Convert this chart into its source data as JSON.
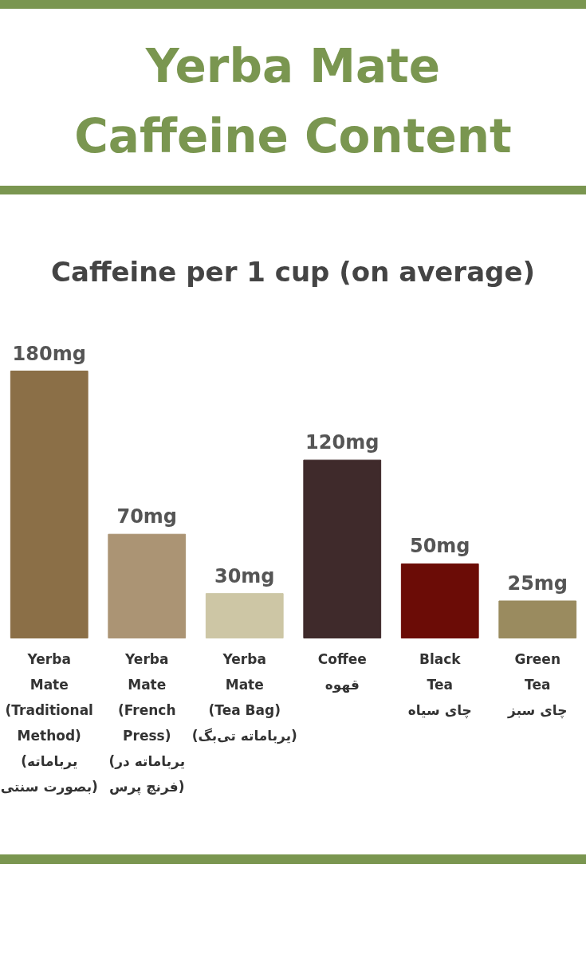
{
  "chart_data": {
    "type": "bar",
    "title": "Yerba Mate\nCaffeine Content",
    "subtitle": "Caffeine per 1 cup (on average)",
    "categories": [
      "Yerba\nMate\n(Traditional\nMethod)\n(یرباماته\nبصورت سنتی)",
      "Yerba\nMate\n(French\nPress)\n(یرباماته در\nفرنچ پرس)",
      "Yerba\nMate\n(Tea Bag)\n(یرباماته تی‌بگ)",
      "Coffee\nقهوه",
      "Black\nTea\nچای سیاه",
      "Green\nTea\nچای سبز"
    ],
    "values": [
      180,
      70,
      30,
      120,
      50,
      25
    ],
    "value_labels": [
      "180mg",
      "70mg",
      "30mg",
      "120mg",
      "50mg",
      "25mg"
    ],
    "colors": [
      "#8b6f47",
      "#ab9474",
      "#cdc6a5",
      "#3f2a2b",
      "#6b0c06",
      "#9a8b5f"
    ]
  }
}
